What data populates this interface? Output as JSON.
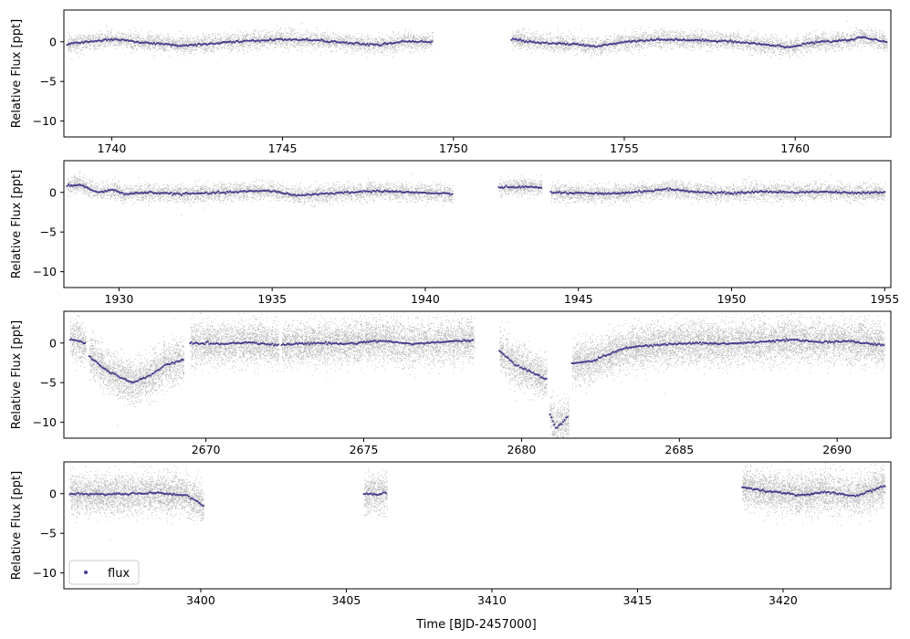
{
  "figure": {
    "xlabel": "Time [BJD-2457000]",
    "legend": {
      "label": "flux",
      "placement": "lower-left"
    },
    "colors": {
      "raw_points": "#000000",
      "binned_flux": "#4b3a8c",
      "axes": "#000000"
    }
  },
  "chart_data": [
    {
      "type": "scatter",
      "ylabel": "Relative Flux [ppt]",
      "xlim": [
        1738.6,
        1762.8
      ],
      "ylim": [
        -12,
        4
      ],
      "xticks": [
        1740,
        1745,
        1750,
        1755,
        1760
      ],
      "yticks": [
        0,
        -5,
        -10
      ],
      "scatter_sigma": 0.55,
      "segments": [
        {
          "x0": 1738.7,
          "x1": 1749.4,
          "knots": [
            [
              1738.7,
              -0.3
            ],
            [
              1740,
              0.3
            ],
            [
              1741,
              -0.1
            ],
            [
              1742,
              -0.5
            ],
            [
              1743,
              -0.2
            ],
            [
              1744,
              0.1
            ],
            [
              1745,
              0.3
            ],
            [
              1746,
              0.2
            ],
            [
              1747,
              -0.2
            ],
            [
              1747.8,
              -0.4
            ],
            [
              1748.5,
              0.0
            ],
            [
              1749.4,
              0.0
            ]
          ]
        },
        {
          "x0": 1751.7,
          "x1": 1762.7,
          "knots": [
            [
              1751.7,
              0.3
            ],
            [
              1752.5,
              -0.1
            ],
            [
              1753.5,
              -0.3
            ],
            [
              1754.2,
              -0.6
            ],
            [
              1755,
              0.0
            ],
            [
              1756,
              0.3
            ],
            [
              1757,
              0.2
            ],
            [
              1758,
              0.1
            ],
            [
              1759,
              -0.3
            ],
            [
              1759.8,
              -0.7
            ],
            [
              1760.5,
              -0.1
            ],
            [
              1761.5,
              0.2
            ],
            [
              1762,
              0.6
            ],
            [
              1762.7,
              -0.1
            ]
          ]
        }
      ]
    },
    {
      "type": "scatter",
      "ylabel": "Relative Flux [ppt]",
      "xlim": [
        1928.2,
        1955.2
      ],
      "ylim": [
        -12,
        4
      ],
      "xticks": [
        1930,
        1935,
        1940,
        1945,
        1950,
        1955
      ],
      "yticks": [
        0,
        -5,
        -10
      ],
      "scatter_sigma": 0.55,
      "segments": [
        {
          "x0": 1928.3,
          "x1": 1940.9,
          "knots": [
            [
              1928.3,
              0.8
            ],
            [
              1928.7,
              1.0
            ],
            [
              1929.3,
              0.0
            ],
            [
              1929.8,
              0.3
            ],
            [
              1930.2,
              -0.2
            ],
            [
              1931,
              0.0
            ],
            [
              1932,
              -0.2
            ],
            [
              1933,
              -0.1
            ],
            [
              1934,
              0.1
            ],
            [
              1935,
              0.2
            ],
            [
              1935.8,
              -0.4
            ],
            [
              1936.5,
              -0.2
            ],
            [
              1937.5,
              0.0
            ],
            [
              1938.5,
              0.2
            ],
            [
              1939.5,
              0.0
            ],
            [
              1940.9,
              -0.2
            ]
          ]
        },
        {
          "x0": 1942.4,
          "x1": 1943.8,
          "knots": [
            [
              1942.4,
              0.6
            ],
            [
              1943.1,
              0.7
            ],
            [
              1943.8,
              0.6
            ]
          ]
        },
        {
          "x0": 1944.1,
          "x1": 1955.0,
          "knots": [
            [
              1944.1,
              0.0
            ],
            [
              1945,
              -0.1
            ],
            [
              1946,
              -0.2
            ],
            [
              1947,
              0.1
            ],
            [
              1948,
              0.4
            ],
            [
              1949,
              0.0
            ],
            [
              1950,
              -0.1
            ],
            [
              1951,
              0.1
            ],
            [
              1952,
              0.0
            ],
            [
              1953,
              0.1
            ],
            [
              1954,
              -0.1
            ],
            [
              1955,
              0.0
            ]
          ]
        }
      ]
    },
    {
      "type": "scatter",
      "ylabel": "Relative Flux [ppt]",
      "xlim": [
        2665.5,
        2691.7
      ],
      "ylim": [
        -12,
        4
      ],
      "xticks": [
        2670,
        2675,
        2680,
        2685,
        2690
      ],
      "yticks": [
        0,
        -5,
        -10
      ],
      "scatter_sigma": 1.3,
      "segments": [
        {
          "x0": 2665.7,
          "x1": 2666.2,
          "knots": [
            [
              2665.7,
              0.5
            ],
            [
              2666.2,
              0.0
            ]
          ]
        },
        {
          "x0": 2666.3,
          "x1": 2669.3,
          "knots": [
            [
              2666.3,
              -1.7
            ],
            [
              2666.8,
              -3.3
            ],
            [
              2667.3,
              -4.4
            ],
            [
              2667.7,
              -5.0
            ],
            [
              2668.2,
              -4.2
            ],
            [
              2668.7,
              -2.8
            ],
            [
              2669.3,
              -2.1
            ]
          ]
        },
        {
          "x0": 2669.5,
          "x1": 2672.3,
          "knots": [
            [
              2669.5,
              0.0
            ],
            [
              2670.5,
              -0.1
            ],
            [
              2671.5,
              0.1
            ],
            [
              2672.3,
              -0.3
            ]
          ]
        },
        {
          "x0": 2672.4,
          "x1": 2678.5,
          "knots": [
            [
              2672.4,
              -0.2
            ],
            [
              2673.5,
              0.0
            ],
            [
              2674.5,
              -0.1
            ],
            [
              2675.5,
              0.3
            ],
            [
              2676.5,
              -0.1
            ],
            [
              2677.5,
              0.1
            ],
            [
              2678.5,
              0.4
            ]
          ]
        },
        {
          "x0": 2679.3,
          "x1": 2680.8,
          "knots": [
            [
              2679.3,
              -1.0
            ],
            [
              2679.8,
              -2.8
            ],
            [
              2680.3,
              -3.6
            ],
            [
              2680.8,
              -4.6
            ]
          ]
        },
        {
          "x0": 2680.9,
          "x1": 2681.5,
          "knots": [
            [
              2680.9,
              -9.0
            ],
            [
              2681.1,
              -10.8
            ],
            [
              2681.3,
              -10.0
            ],
            [
              2681.5,
              -9.2
            ]
          ]
        },
        {
          "x0": 2681.6,
          "x1": 2691.5,
          "knots": [
            [
              2681.6,
              -2.6
            ],
            [
              2682.3,
              -2.2
            ],
            [
              2683,
              -1.0
            ],
            [
              2683.5,
              -0.5
            ],
            [
              2684.5,
              -0.2
            ],
            [
              2685.5,
              0.0
            ],
            [
              2686.5,
              -0.1
            ],
            [
              2687.5,
              0.1
            ],
            [
              2688.5,
              0.4
            ],
            [
              2689.5,
              0.1
            ],
            [
              2690.5,
              0.2
            ],
            [
              2691.5,
              -0.3
            ]
          ]
        }
      ]
    },
    {
      "type": "scatter",
      "ylabel": "Relative Flux [ppt]",
      "xlim": [
        3395.3,
        3423.7
      ],
      "ylim": [
        -12,
        4
      ],
      "xticks": [
        3400,
        3405,
        3410,
        3415,
        3420
      ],
      "yticks": [
        0,
        -5,
        -10
      ],
      "scatter_sigma": 1.2,
      "segments": [
        {
          "x0": 3395.5,
          "x1": 3400.1,
          "knots": [
            [
              3395.5,
              0.0
            ],
            [
              3396.5,
              -0.1
            ],
            [
              3397.5,
              0.0
            ],
            [
              3398.5,
              0.1
            ],
            [
              3399.5,
              -0.2
            ],
            [
              3400.1,
              -1.5
            ]
          ]
        },
        {
          "x0": 3405.6,
          "x1": 3406.4,
          "knots": [
            [
              3405.6,
              0.0
            ],
            [
              3406,
              -0.1
            ],
            [
              3406.4,
              0.1
            ]
          ]
        },
        {
          "x0": 3418.6,
          "x1": 3423.5,
          "knots": [
            [
              3418.6,
              0.8
            ],
            [
              3419.5,
              0.3
            ],
            [
              3420.5,
              -0.2
            ],
            [
              3421.5,
              0.2
            ],
            [
              3422.5,
              -0.3
            ],
            [
              3423.5,
              1.0
            ]
          ]
        }
      ]
    }
  ]
}
